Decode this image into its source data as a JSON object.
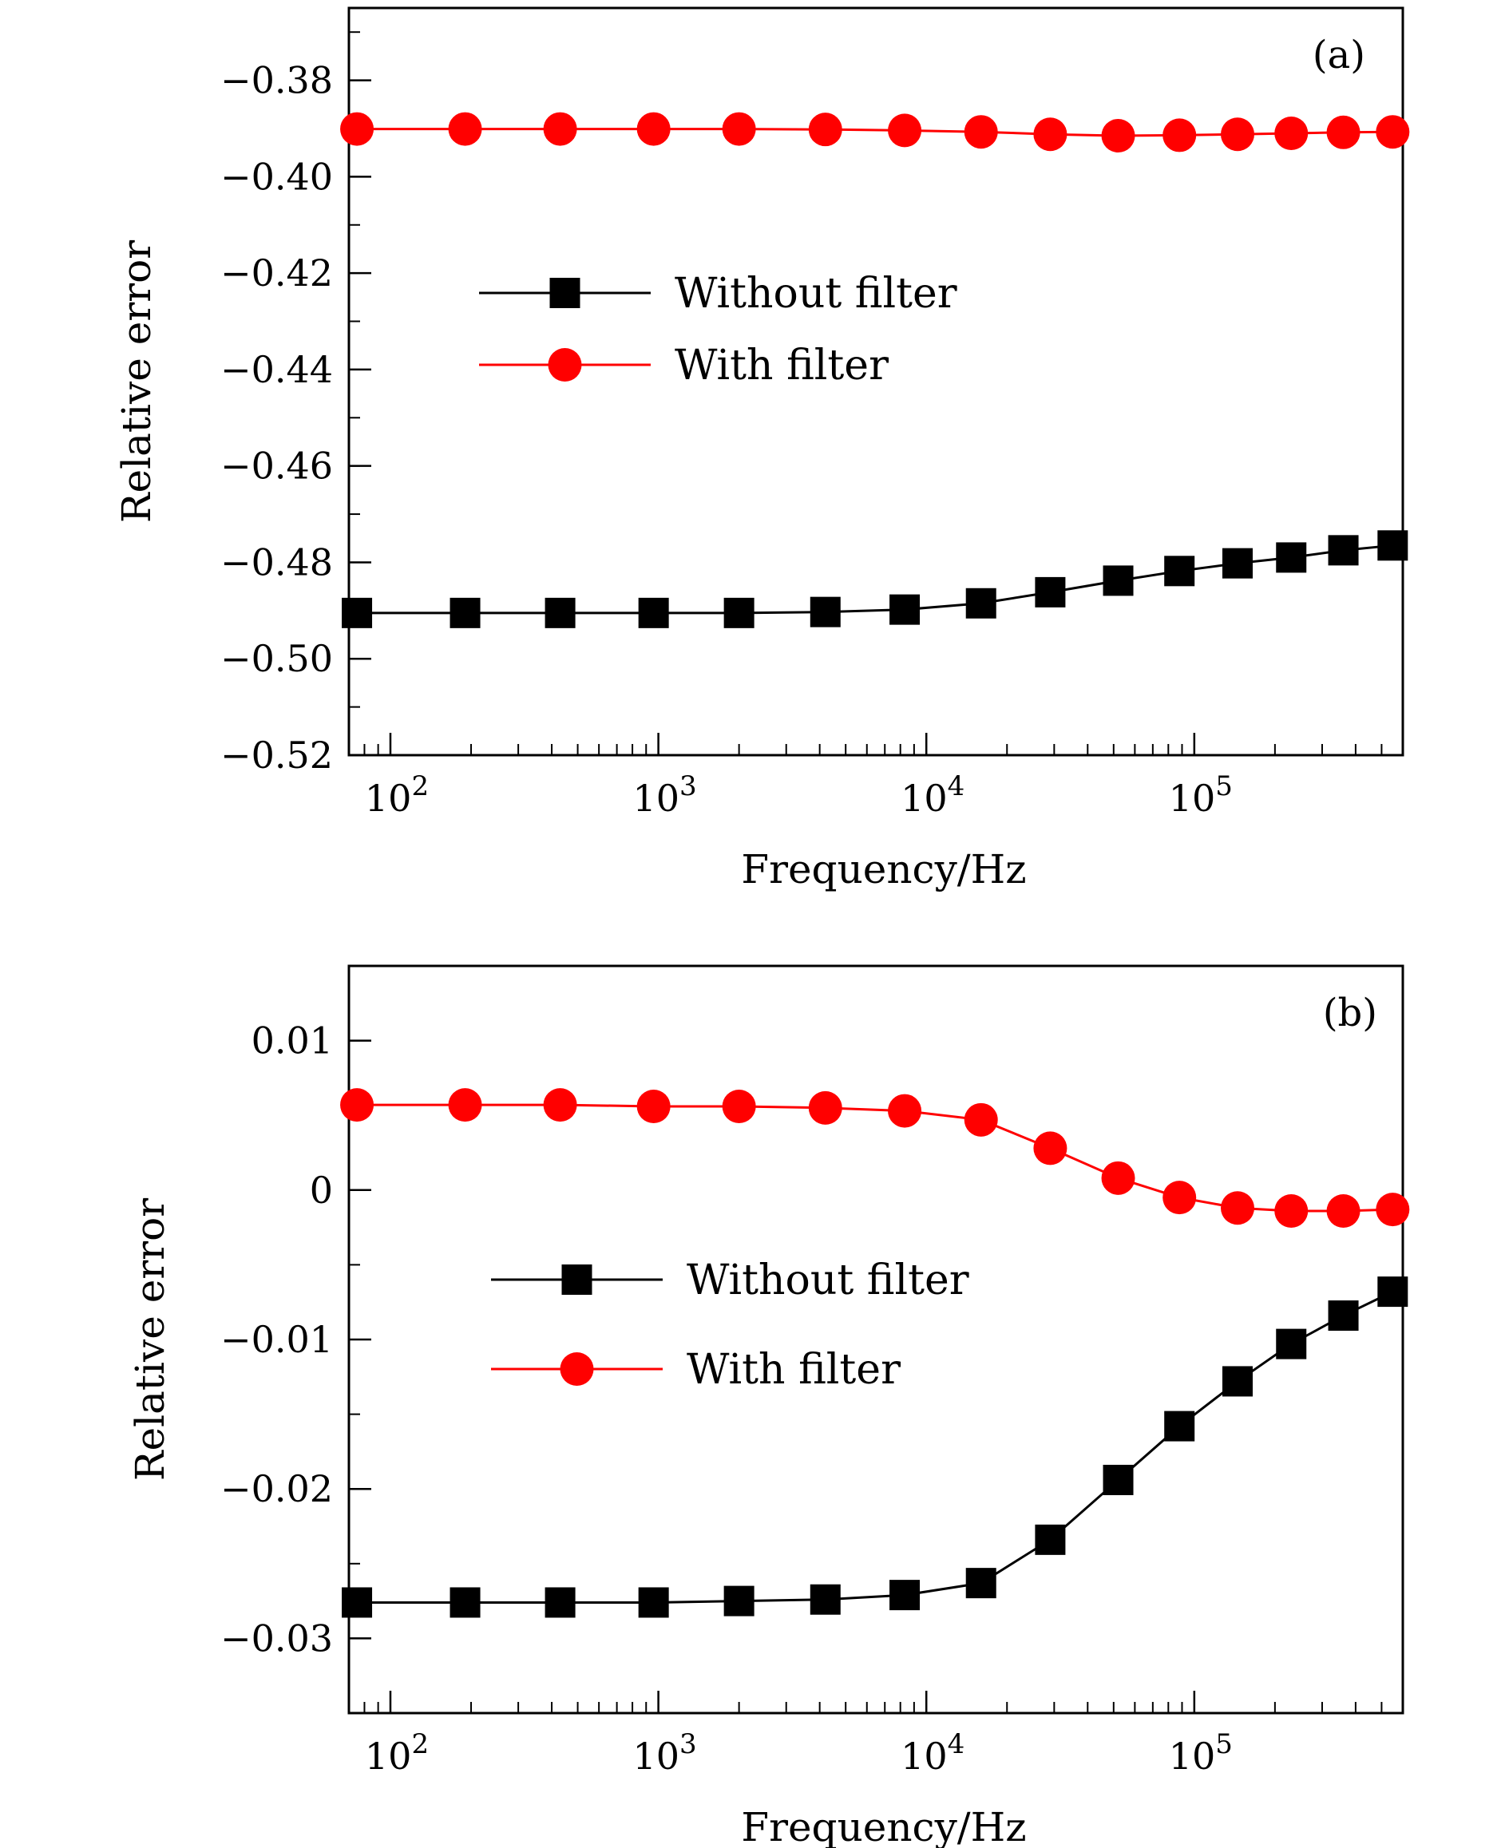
{
  "chart_data": [
    {
      "type": "line",
      "panel_label": "(a)",
      "xlabel": "Frequency/Hz",
      "ylabel": "Relative error",
      "xscale": "log",
      "xlim": [
        70,
        600000
      ],
      "ylim": [
        -0.52,
        -0.365
      ],
      "yticks": [
        -0.52,
        -0.5,
        -0.48,
        -0.46,
        -0.44,
        -0.42,
        -0.4,
        -0.38
      ],
      "ytick_labels": [
        "−0.52",
        "−0.50",
        "−0.48",
        "−0.46",
        "−0.44",
        "−0.42",
        "−0.40",
        "−0.38"
      ],
      "ytick_minor_step": 0.01,
      "xticks": [
        100,
        1000,
        10000,
        100000
      ],
      "xtick_bases": [
        "10",
        "10",
        "10",
        "10"
      ],
      "xtick_exponents": [
        "2",
        "3",
        "4",
        "5"
      ],
      "legend_position": "center-left",
      "x": [
        75,
        190,
        430,
        960,
        2000,
        4200,
        8300,
        16000,
        29000,
        52000,
        88000,
        145000,
        230000,
        360000,
        550000
      ],
      "series": [
        {
          "name": "Without filter",
          "marker": "square",
          "color": "#000000",
          "values": [
            -0.4905,
            -0.4905,
            -0.4905,
            -0.4905,
            -0.4905,
            -0.4903,
            -0.4898,
            -0.4885,
            -0.4862,
            -0.4838,
            -0.4818,
            -0.4802,
            -0.479,
            -0.4775,
            -0.4765
          ]
        },
        {
          "name": "With filter",
          "marker": "circle",
          "color": "#ff0000",
          "values": [
            -0.3901,
            -0.3901,
            -0.3901,
            -0.3901,
            -0.3901,
            -0.3902,
            -0.3904,
            -0.3907,
            -0.3912,
            -0.3915,
            -0.3914,
            -0.3912,
            -0.391,
            -0.3908,
            -0.3907
          ]
        }
      ]
    },
    {
      "type": "line",
      "panel_label": "(b)",
      "xlabel": "Frequency/Hz",
      "ylabel": "Relative error",
      "xscale": "log",
      "xlim": [
        70,
        600000
      ],
      "ylim": [
        -0.035,
        0.015
      ],
      "yticks": [
        -0.03,
        -0.02,
        -0.01,
        0,
        0.01
      ],
      "ytick_labels": [
        "−0.03",
        "−0.02",
        "−0.01",
        "0",
        "0.01"
      ],
      "ytick_minor_step": 0.005,
      "xticks": [
        100,
        1000,
        10000,
        100000
      ],
      "xtick_bases": [
        "10",
        "10",
        "10",
        "10"
      ],
      "xtick_exponents": [
        "2",
        "3",
        "4",
        "5"
      ],
      "legend_position": "center-left",
      "x": [
        75,
        190,
        430,
        960,
        2000,
        4200,
        8300,
        16000,
        29000,
        52000,
        88000,
        145000,
        230000,
        360000,
        550000
      ],
      "series": [
        {
          "name": "Without filter",
          "marker": "square",
          "color": "#000000",
          "values": [
            -0.0276,
            -0.0276,
            -0.0276,
            -0.0276,
            -0.0275,
            -0.0274,
            -0.0271,
            -0.0263,
            -0.0234,
            -0.0194,
            -0.0158,
            -0.0128,
            -0.0103,
            -0.0084,
            -0.0068
          ]
        },
        {
          "name": "With filter",
          "marker": "circle",
          "color": "#ff0000",
          "values": [
            0.0057,
            0.0057,
            0.0057,
            0.0056,
            0.0056,
            0.0055,
            0.0053,
            0.0047,
            0.0028,
            0.0008,
            -0.0005,
            -0.0012,
            -0.0014,
            -0.0014,
            -0.0013
          ]
        }
      ]
    }
  ]
}
